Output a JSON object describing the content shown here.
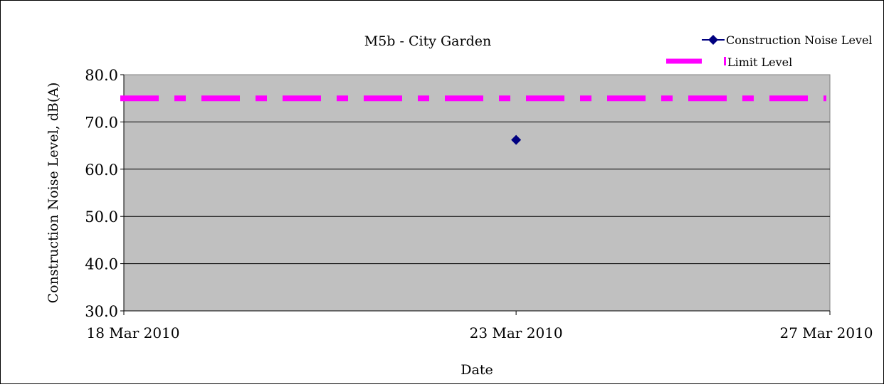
{
  "chart_data": {
    "type": "line",
    "title": "M5b - City Garden",
    "xlabel": "Date",
    "ylabel": "Construction Noise Level, dB(A)",
    "x_range": [
      "2010-03-18",
      "2010-03-27"
    ],
    "x_ticks": [
      "2010-03-18",
      "2010-03-23",
      "2010-03-27"
    ],
    "x_tick_labels": [
      "18 Mar 2010",
      "23 Mar 2010",
      "27 Mar 2010"
    ],
    "ylim": [
      30.0,
      80.0
    ],
    "y_ticks": [
      30.0,
      40.0,
      50.0,
      60.0,
      70.0,
      80.0
    ],
    "y_tick_labels": [
      "30.0",
      "40.0",
      "50.0",
      "60.0",
      "70.0",
      "80.0"
    ],
    "grid": "horizontal",
    "legend_position": "top-right",
    "series": [
      {
        "name": "Construction Noise Level",
        "color": "#000080",
        "marker": "diamond",
        "points": [
          {
            "x": "2010-03-23",
            "y": 66.2
          }
        ]
      },
      {
        "name": "Limit Level",
        "color": "#ff00ff",
        "style": "dashed",
        "points": [
          {
            "x": "2010-03-18",
            "y": 75.0
          },
          {
            "x": "2010-03-27",
            "y": 75.0
          }
        ]
      }
    ],
    "plot_background": "#c0c0c0"
  }
}
